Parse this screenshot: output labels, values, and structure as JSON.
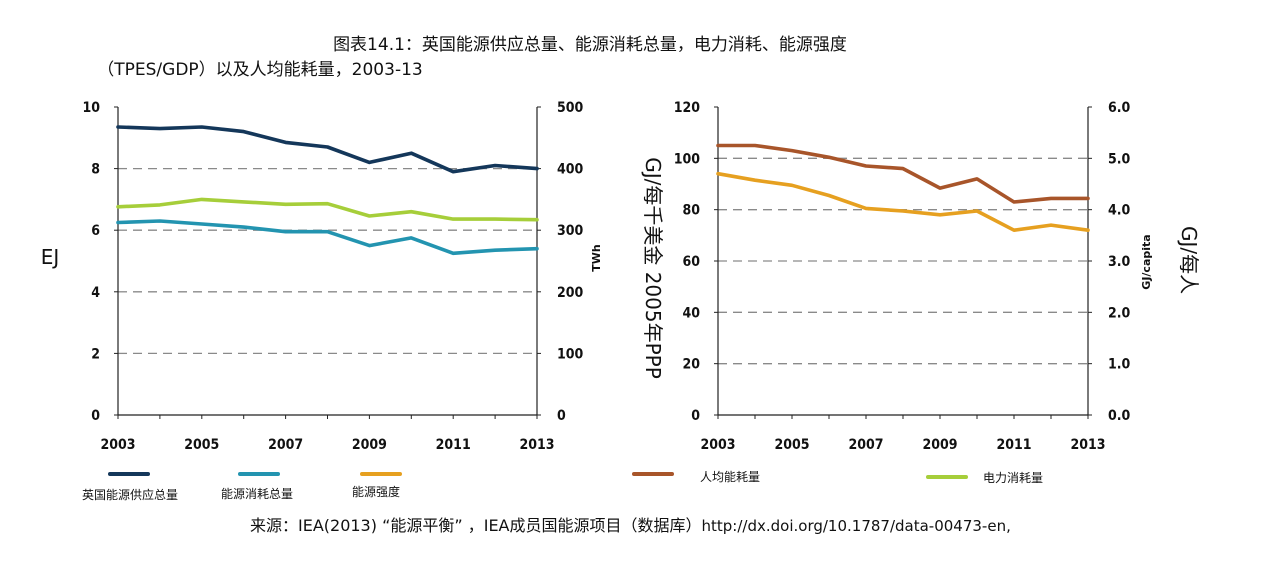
{
  "title_line1": "图表14.1：英国能源供应总量、能源消耗总量，电力消耗、能源强度",
  "title_line2": "（TPES/GDP）以及人均能耗量，2003-13",
  "source_prefix": "来源：IEA(2013) “能源平衡” ，IEA成员国能源项目（数据库）",
  "source_url": "http://dx.doi.org/10.1787/data-00473-en,",
  "colors": {
    "tpes": "#14375a",
    "tfc": "#2394b0",
    "intensity": "#e6a020",
    "percapita": "#a8552a",
    "electricity": "#a6ce3a"
  },
  "chart_data": [
    {
      "type": "line",
      "x": [
        2003,
        2004,
        2005,
        2006,
        2007,
        2008,
        2009,
        2010,
        2011,
        2012,
        2013
      ],
      "xticks": [
        "2003",
        "2005",
        "2007",
        "2009",
        "2011",
        "2013"
      ],
      "ylabel_left": "EJ",
      "ylim_left": [
        0,
        10
      ],
      "yticks_left": [
        "0",
        "2",
        "4",
        "6",
        "8",
        "10"
      ],
      "ylabel_right": "TWh",
      "ylim_right": [
        0,
        500
      ],
      "yticks_right": [
        "0",
        "100",
        "200",
        "300",
        "400",
        "500"
      ],
      "grid": "horizontal dashed",
      "series": [
        {
          "name": "英国能源供应总量",
          "axis": "left",
          "color": "#14375a",
          "values": [
            9.35,
            9.3,
            9.35,
            9.2,
            8.85,
            8.7,
            8.2,
            8.5,
            7.9,
            8.1,
            8.0
          ]
        },
        {
          "name": "能源消耗总量",
          "axis": "left",
          "color": "#2394b0",
          "values": [
            6.25,
            6.3,
            6.2,
            6.1,
            5.95,
            5.95,
            5.5,
            5.75,
            5.25,
            5.35,
            5.4
          ]
        },
        {
          "name": "电力消耗量",
          "axis": "right",
          "color": "#a6ce3a",
          "values": [
            338,
            341,
            350,
            346,
            342,
            343,
            323,
            330,
            318,
            318,
            317
          ]
        }
      ]
    },
    {
      "type": "line",
      "x": [
        2003,
        2004,
        2005,
        2006,
        2007,
        2008,
        2009,
        2010,
        2011,
        2012,
        2013
      ],
      "xticks": [
        "2003",
        "2005",
        "2007",
        "2009",
        "2011",
        "2013"
      ],
      "ylabel_left": "GJ/每千美金 2005年PPP",
      "ylim_left": [
        0,
        120
      ],
      "yticks_left": [
        "0",
        "20",
        "40",
        "60",
        "80",
        "100",
        "120"
      ],
      "ylabel_right_small": "GJ/capita",
      "ylabel_right": "GJ/每人",
      "ylim_right": [
        0,
        6
      ],
      "yticks_right": [
        "0.0",
        "1.0",
        "2.0",
        "3.0",
        "4.0",
        "5.0",
        "6.0"
      ],
      "grid": "horizontal dashed",
      "series": [
        {
          "name": "能源强度",
          "axis": "left",
          "color": "#e6a020",
          "values": [
            94,
            91.5,
            89.5,
            85.5,
            80.5,
            79.5,
            78,
            79.5,
            72,
            74,
            72
          ]
        },
        {
          "name": "人均能耗量",
          "axis": "right",
          "color": "#a8552a",
          "values": [
            5.25,
            5.25,
            5.15,
            5.02,
            4.85,
            4.8,
            4.42,
            4.6,
            4.15,
            4.22,
            4.22
          ]
        }
      ]
    }
  ],
  "legend": [
    {
      "label": "英国能源供应总量",
      "color": "#14375a"
    },
    {
      "label": "能源消耗总量",
      "color": "#2394b0"
    },
    {
      "label": "能源强度",
      "color": "#e6a020"
    },
    {
      "label": "人均能耗量",
      "color": "#a8552a"
    },
    {
      "label": "电力消耗量",
      "color": "#a6ce3a"
    }
  ]
}
